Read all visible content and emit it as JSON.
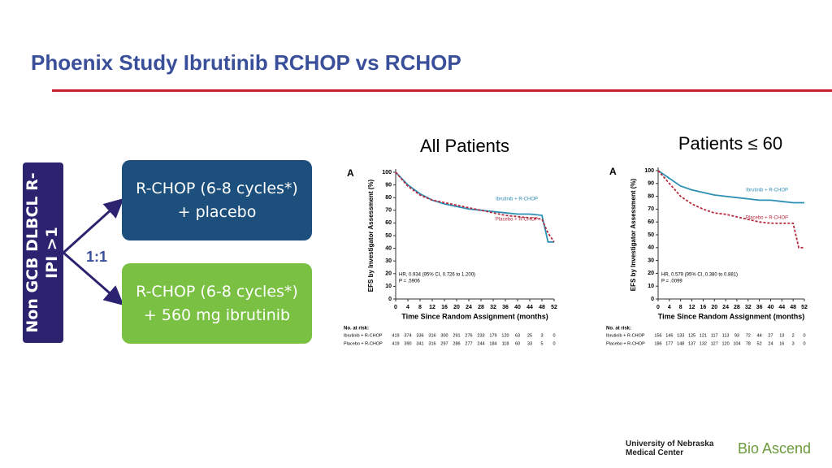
{
  "header": {
    "title": "Phoenix Study Ibrutinib RCHOP vs RCHOP"
  },
  "design": {
    "population": "Non GCB DLBCL R-IPI >1",
    "ratio": "1:1",
    "arm1": "R-CHOP (6-8 cycles*) + placebo",
    "arm2": "R-CHOP (6-8 cycles*) + 560 mg ibrutinib"
  },
  "chart_data": [
    {
      "type": "line",
      "heading": "All Patients",
      "panel": "A",
      "y_label": "EFS by Investigator Assessment (%)",
      "x_label": "Time Since Random Assignment (months)",
      "x": [
        0,
        4,
        8,
        12,
        16,
        20,
        24,
        28,
        32,
        36,
        40,
        44,
        48,
        50,
        52
      ],
      "series": [
        {
          "name": "Ibrutinib + R-CHOP",
          "color": "#2e8fb5",
          "values": [
            100,
            90,
            83,
            78,
            75,
            73,
            71,
            70,
            69,
            68,
            67,
            67,
            66,
            45,
            45
          ]
        },
        {
          "name": "Placebo + R-CHOP",
          "color": "#b5283c",
          "values": [
            100,
            89,
            82,
            78,
            76,
            74,
            72,
            70,
            68,
            66,
            65,
            64,
            63,
            52,
            45
          ]
        }
      ],
      "xlim": [
        0,
        52
      ],
      "xticks": [
        0,
        4,
        8,
        12,
        16,
        20,
        24,
        28,
        32,
        36,
        40,
        44,
        48,
        52
      ],
      "ylim": [
        0,
        100
      ],
      "yticks": [
        0,
        10,
        20,
        30,
        40,
        50,
        60,
        70,
        80,
        90,
        100
      ],
      "annotations": [
        "HR, 0.934 (95% CI, 0.726 to 1.200)",
        "P = .5906"
      ],
      "at_risk": {
        "title": "No. at risk:",
        "rows": [
          {
            "name": "Ibrutinib + R-CHOP",
            "values": [
              419,
              374,
              336,
              316,
              300,
              291,
              276,
              233,
              179,
              120,
              63,
              25,
              3,
              0
            ]
          },
          {
            "name": "Placebo + R-CHOP",
            "values": [
              419,
              390,
              341,
              316,
              297,
              286,
              277,
              244,
              184,
              118,
              60,
              33,
              5,
              0
            ]
          }
        ]
      }
    },
    {
      "type": "line",
      "heading": "Patients ≤ 60",
      "panel": "A",
      "y_label": "EFS by Investigator Assessment (%)",
      "x_label": "Time Since Random Assignment (months)",
      "x": [
        0,
        4,
        8,
        12,
        16,
        20,
        24,
        28,
        32,
        36,
        40,
        44,
        48,
        50,
        52
      ],
      "series": [
        {
          "name": "Ibrutinib + R-CHOP",
          "color": "#2e8fb5",
          "values": [
            100,
            94,
            88,
            85,
            83,
            81,
            80,
            79,
            78,
            77,
            77,
            76,
            75,
            75,
            75
          ]
        },
        {
          "name": "Placebo + R-CHOP",
          "color": "#b5283c",
          "values": [
            100,
            90,
            80,
            74,
            70,
            67,
            66,
            64,
            62,
            60,
            59,
            59,
            59,
            40,
            40
          ]
        }
      ],
      "xlim": [
        0,
        52
      ],
      "xticks": [
        0,
        4,
        8,
        12,
        16,
        20,
        24,
        28,
        32,
        36,
        40,
        44,
        48,
        52
      ],
      "ylim": [
        0,
        100
      ],
      "yticks": [
        0,
        10,
        20,
        30,
        40,
        50,
        60,
        70,
        80,
        90,
        100
      ],
      "annotations": [
        "HR, 0.579 (95% CI, 0.380 to 0.881)",
        "P = .0099"
      ],
      "at_risk": {
        "title": "No. at risk:",
        "rows": [
          {
            "name": "Ibrutinib + R-CHOP",
            "values": [
              156,
              146,
              133,
              125,
              121,
              117,
              113,
              93,
              72,
              44,
              27,
              13,
              2,
              0
            ]
          },
          {
            "name": "Placebo + R-CHOP",
            "values": [
              186,
              177,
              148,
              137,
              132,
              127,
              120,
              104,
              78,
              52,
              24,
              16,
              3,
              0
            ]
          }
        ]
      }
    }
  ],
  "footer": {
    "logo1": "University of Nebraska Medical Center",
    "logo2": "Bio Ascend"
  }
}
